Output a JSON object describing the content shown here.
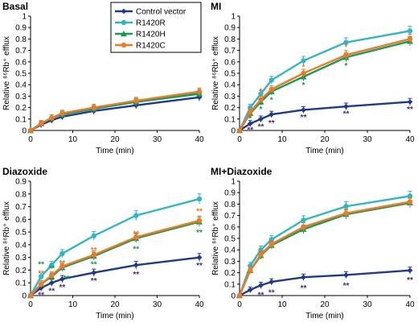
{
  "colors": {
    "Control vector": "#1f3a8a",
    "R1420R": "#33b5c8",
    "R1420H": "#1a9a52",
    "R1420C": "#ec7a28",
    "star_control": "#4a2a7a",
    "star_R1420H": "#1a9a52",
    "star_R1420C": "#ec7a28"
  },
  "legend": [
    "Control vector",
    "R1420R",
    "R1420H",
    "R1420C"
  ],
  "chart_data": [
    {
      "type": "line",
      "title": "Basal",
      "xlabel": "Time (min)",
      "ylabel": "Relative ⁸⁶Rb⁺ efflux",
      "xlim": [
        0,
        40
      ],
      "ylim": [
        0,
        1
      ],
      "xticks": [
        0,
        10,
        20,
        30,
        40
      ],
      "yticks": [
        0,
        0.1,
        0.2,
        0.3,
        0.4,
        0.5,
        0.6,
        0.7,
        0.8,
        0.9,
        1
      ],
      "x": [
        0,
        2.5,
        5,
        7.5,
        15,
        25,
        40
      ],
      "series": [
        {
          "name": "Control vector",
          "values": [
            0,
            0.05,
            0.09,
            0.12,
            0.17,
            0.22,
            0.29
          ]
        },
        {
          "name": "R1420R",
          "values": [
            0,
            0.06,
            0.11,
            0.14,
            0.19,
            0.25,
            0.33
          ]
        },
        {
          "name": "R1420H",
          "values": [
            0,
            0.06,
            0.11,
            0.14,
            0.19,
            0.25,
            0.32
          ]
        },
        {
          "name": "R1420C",
          "values": [
            0,
            0.06,
            0.11,
            0.15,
            0.2,
            0.26,
            0.34
          ]
        }
      ],
      "significance": []
    },
    {
      "type": "line",
      "title": "MI",
      "xlabel": "Time (min)",
      "ylabel": "Relative ⁸⁶Rb⁺ efflux",
      "xlim": [
        0,
        40
      ],
      "ylim": [
        0,
        1
      ],
      "xticks": [
        0,
        10,
        20,
        30,
        40
      ],
      "yticks": [
        0,
        0.1,
        0.2,
        0.3,
        0.4,
        0.5,
        0.6,
        0.7,
        0.8,
        0.9,
        1
      ],
      "x": [
        0,
        2.5,
        5,
        7.5,
        15,
        25,
        40
      ],
      "series": [
        {
          "name": "Control vector",
          "values": [
            0,
            0.06,
            0.1,
            0.14,
            0.18,
            0.21,
            0.25
          ]
        },
        {
          "name": "R1420R",
          "values": [
            0,
            0.2,
            0.32,
            0.44,
            0.61,
            0.77,
            0.87
          ]
        },
        {
          "name": "R1420H",
          "values": [
            0,
            0.15,
            0.25,
            0.34,
            0.47,
            0.64,
            0.78
          ]
        },
        {
          "name": "R1420C",
          "values": [
            0,
            0.16,
            0.27,
            0.36,
            0.5,
            0.66,
            0.8
          ]
        }
      ],
      "significance": [
        {
          "x": 2.5,
          "y": 0.01,
          "text": "**",
          "color": "star_control"
        },
        {
          "x": 5,
          "y": 0.04,
          "text": "**",
          "color": "star_control"
        },
        {
          "x": 7.5,
          "y": 0.07,
          "text": "**",
          "color": "star_control"
        },
        {
          "x": 15,
          "y": 0.12,
          "text": "**",
          "color": "star_control"
        },
        {
          "x": 25,
          "y": 0.15,
          "text": "**",
          "color": "star_control"
        },
        {
          "x": 40,
          "y": 0.19,
          "text": "**",
          "color": "star_control"
        },
        {
          "x": 2.5,
          "y": 0.11,
          "text": "*",
          "color": "star_R1420H"
        },
        {
          "x": 5,
          "y": 0.19,
          "text": "*",
          "color": "star_R1420H"
        },
        {
          "x": 7.5,
          "y": 0.27,
          "text": "*",
          "color": "star_R1420H"
        },
        {
          "x": 15,
          "y": 0.4,
          "text": "*",
          "color": "star_R1420H"
        },
        {
          "x": 25,
          "y": 0.57,
          "text": "*",
          "color": "star_R1420H"
        },
        {
          "x": 5,
          "y": 0.35,
          "text": "*",
          "color": "star_R1420C"
        },
        {
          "x": 15,
          "y": 0.56,
          "text": "*",
          "color": "star_R1420C"
        },
        {
          "x": 25,
          "y": 0.74,
          "text": "*",
          "color": "star_R1420C"
        }
      ]
    },
    {
      "type": "line",
      "title": "Diazoxide",
      "xlabel": "Time (min)",
      "ylabel": "Relative ⁸⁶Rb⁺ efflux",
      "xlim": [
        0,
        40
      ],
      "ylim": [
        0,
        0.9
      ],
      "xticks": [
        0,
        10,
        20,
        30,
        40
      ],
      "yticks": [
        0,
        0.1,
        0.2,
        0.3,
        0.4,
        0.5,
        0.6,
        0.7,
        0.8,
        0.9
      ],
      "x": [
        0,
        2.5,
        5,
        7.5,
        15,
        25,
        40
      ],
      "series": [
        {
          "name": "Control vector",
          "values": [
            0,
            0.06,
            0.1,
            0.13,
            0.18,
            0.24,
            0.3
          ]
        },
        {
          "name": "R1420R",
          "values": [
            0,
            0.15,
            0.24,
            0.33,
            0.47,
            0.63,
            0.76
          ]
        },
        {
          "name": "R1420H",
          "values": [
            0,
            0.09,
            0.15,
            0.22,
            0.31,
            0.45,
            0.58
          ]
        },
        {
          "name": "R1420C",
          "values": [
            0,
            0.09,
            0.16,
            0.23,
            0.32,
            0.46,
            0.59
          ]
        }
      ],
      "significance": [
        {
          "x": 2.5,
          "y": 0.01,
          "text": "**",
          "color": "star_control"
        },
        {
          "x": 5,
          "y": 0.04,
          "text": "**",
          "color": "star_control"
        },
        {
          "x": 7.5,
          "y": 0.07,
          "text": "**",
          "color": "star_control"
        },
        {
          "x": 15,
          "y": 0.12,
          "text": "**",
          "color": "star_control"
        },
        {
          "x": 25,
          "y": 0.17,
          "text": "**",
          "color": "star_control"
        },
        {
          "x": 40,
          "y": 0.24,
          "text": "**",
          "color": "star_control"
        },
        {
          "x": 2.5,
          "y": 0.25,
          "text": "**",
          "color": "star_R1420H"
        },
        {
          "x": 5,
          "y": 0.22,
          "text": "**",
          "color": "star_R1420H"
        },
        {
          "x": 8.5,
          "y": 0.14,
          "text": "**",
          "color": "star_R1420H"
        },
        {
          "x": 15,
          "y": 0.25,
          "text": "**",
          "color": "star_R1420H"
        },
        {
          "x": 25,
          "y": 0.37,
          "text": "**",
          "color": "star_R1420H"
        },
        {
          "x": 40,
          "y": 0.5,
          "text": "**",
          "color": "star_R1420H"
        },
        {
          "x": 2.5,
          "y": 0.18,
          "text": "**",
          "color": "star_R1420C"
        },
        {
          "x": 7.5,
          "y": 0.26,
          "text": "**",
          "color": "star_R1420C"
        },
        {
          "x": 15,
          "y": 0.36,
          "text": "**",
          "color": "star_R1420C"
        },
        {
          "x": 25,
          "y": 0.49,
          "text": "**",
          "color": "star_R1420C"
        },
        {
          "x": 40,
          "y": 0.67,
          "text": "**",
          "color": "star_R1420C"
        }
      ]
    },
    {
      "type": "line",
      "title": "MI+Diazoxide",
      "xlabel": "Time (min)",
      "ylabel": "Relative ⁸⁶Rb⁺ efflux",
      "xlim": [
        0,
        40
      ],
      "ylim": [
        0,
        1
      ],
      "xticks": [
        0,
        10,
        20,
        30,
        40
      ],
      "yticks": [
        0,
        0.1,
        0.2,
        0.3,
        0.4,
        0.5,
        0.6,
        0.7,
        0.8,
        0.9,
        1
      ],
      "x": [
        0,
        2.5,
        5,
        7.5,
        15,
        25,
        40
      ],
      "series": [
        {
          "name": "Control vector",
          "values": [
            0,
            0.05,
            0.09,
            0.12,
            0.16,
            0.18,
            0.22
          ]
        },
        {
          "name": "R1420R",
          "values": [
            0,
            0.26,
            0.4,
            0.49,
            0.66,
            0.78,
            0.87
          ]
        },
        {
          "name": "R1420H",
          "values": [
            0,
            0.22,
            0.35,
            0.44,
            0.58,
            0.71,
            0.81
          ]
        },
        {
          "name": "R1420C",
          "values": [
            0,
            0.22,
            0.36,
            0.45,
            0.6,
            0.72,
            0.82
          ]
        }
      ],
      "significance": [
        {
          "x": 5,
          "y": 0.01,
          "text": "**",
          "color": "star_control"
        },
        {
          "x": 7.5,
          "y": 0.03,
          "text": "**",
          "color": "star_control"
        },
        {
          "x": 15,
          "y": 0.07,
          "text": "**",
          "color": "star_control"
        },
        {
          "x": 25,
          "y": 0.09,
          "text": "**",
          "color": "star_control"
        },
        {
          "x": 40,
          "y": 0.14,
          "text": "**",
          "color": "star_control"
        }
      ]
    }
  ]
}
